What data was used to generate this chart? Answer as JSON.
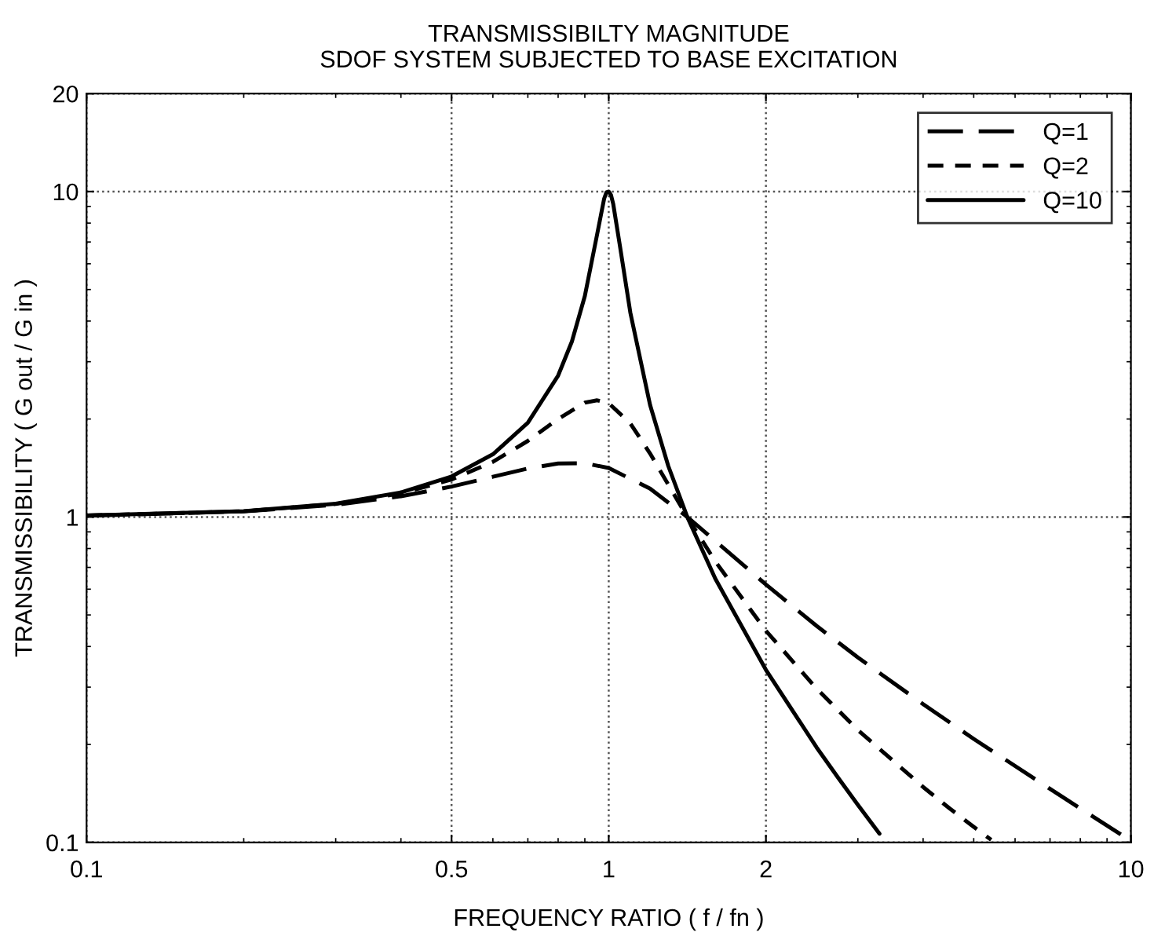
{
  "chart_data": {
    "type": "line",
    "title": "TRANSMISSIBILTY MAGNITUDE\nSDOF SYSTEM SUBJECTED TO BASE EXCITATION",
    "xlabel": "FREQUENCY RATIO ( f / fn )",
    "ylabel": "TRANSMISSIBILITY ( G out / G in )",
    "log": "xy",
    "xlim": [
      0.1,
      10
    ],
    "ylim": [
      0.1,
      20
    ],
    "xticks": [
      0.1,
      0.5,
      1,
      2,
      10
    ],
    "yticks": [
      0.1,
      1,
      10,
      20
    ],
    "grid": true,
    "legend": "top right",
    "marker": "none",
    "series": [
      {
        "name": "Q=1",
        "color": "#000000",
        "line_style": "longdash",
        "x": [
          0.1,
          0.2,
          0.3,
          0.4,
          0.5,
          0.6,
          0.7,
          0.8,
          0.9,
          1.0,
          1.2,
          1.414,
          1.6,
          2,
          2.5,
          3,
          4,
          5,
          7,
          10
        ],
        "values": [
          1.01,
          1.04,
          1.09,
          1.158,
          1.24,
          1.329,
          1.409,
          1.46,
          1.463,
          1.414,
          1.222,
          1.0,
          0.844,
          0.62,
          0.463,
          0.37,
          0.266,
          0.208,
          0.146,
          0.101
        ]
      },
      {
        "name": "Q=2",
        "color": "#000000",
        "line_style": "dashed",
        "x": [
          0.1,
          0.2,
          0.3,
          0.4,
          0.5,
          0.6,
          0.7,
          0.8,
          0.9,
          0.95,
          1.0,
          1.1,
          1.2,
          1.414,
          1.6,
          2,
          2.5,
          3,
          4,
          4.5,
          5,
          5.4
        ],
        "values": [
          1.01,
          1.041,
          1.096,
          1.181,
          1.304,
          1.477,
          1.713,
          2.001,
          2.245,
          2.283,
          2.236,
          1.939,
          1.567,
          1.0,
          0.73,
          0.447,
          0.297,
          0.2215,
          0.148,
          0.127,
          0.1116,
          0.1018
        ]
      },
      {
        "name": "Q=10",
        "color": "#000000",
        "line_style": "solid",
        "x": [
          0.1,
          0.2,
          0.3,
          0.4,
          0.5,
          0.6,
          0.7,
          0.8,
          0.85,
          0.9,
          0.95,
          0.98,
          0.99,
          1.0,
          1.01,
          1.02,
          1.05,
          1.1,
          1.2,
          1.3,
          1.414,
          1.6,
          2,
          2.5,
          2.75,
          3,
          3.3
        ],
        "values": [
          1.01,
          1.042,
          1.099,
          1.19,
          1.332,
          1.558,
          1.947,
          2.72,
          3.459,
          4.776,
          7.38,
          9.51,
          9.95,
          10.0,
          9.76,
          9.16,
          6.85,
          4.244,
          2.208,
          1.436,
          1.0,
          0.646,
          0.339,
          0.196,
          0.158,
          0.1304,
          0.1064
        ]
      }
    ]
  }
}
